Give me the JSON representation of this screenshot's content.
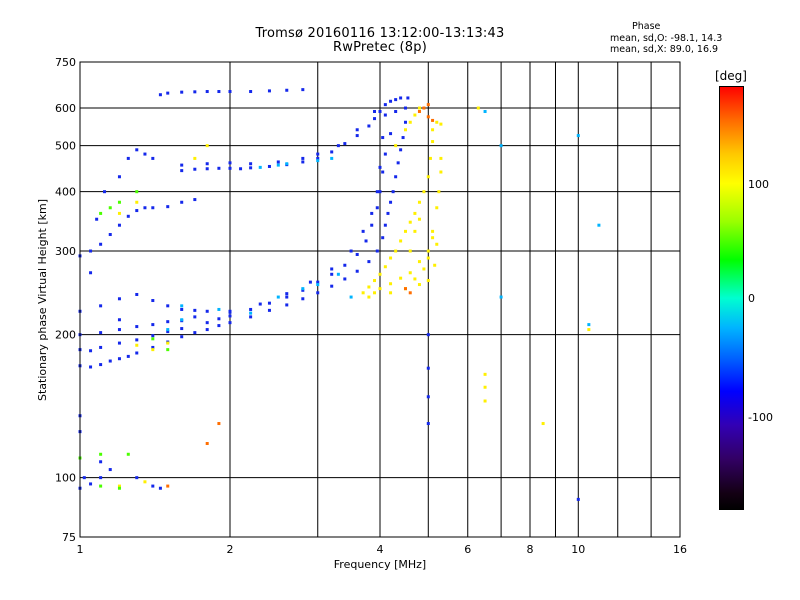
{
  "header": {
    "title_line1": "Tromsø 20160116 13:12:00-13:13:43",
    "title_line2": "RwPretec (8p)",
    "phase_label": "Phase",
    "phase_o": "mean, sd,O: -98.1, 14.3",
    "phase_x": "mean, sd,X: 89.0, 16.9"
  },
  "colorbar": {
    "unit": "[deg]",
    "ticks": [
      "100",
      "0",
      "-100"
    ],
    "range": [
      -180,
      180
    ]
  },
  "chart_data": {
    "type": "scatter",
    "title": "Tromsø 20160116 13:12:00-13:13:43",
    "subtitle": "RwPretec (8p)",
    "xlabel": "Frequency [MHz]",
    "ylabel": "Stationary phase Virtual Height [km]",
    "xscale": "log",
    "yscale": "log",
    "xlim": [
      1,
      16
    ],
    "ylim": [
      75,
      750
    ],
    "xticks": [
      "1",
      "2",
      "4",
      "6",
      "8",
      "10",
      "16"
    ],
    "xtick_values": [
      1,
      2,
      4,
      6,
      8,
      10,
      16
    ],
    "xgrid": [
      1,
      2,
      3,
      4,
      5,
      6,
      7,
      8,
      9,
      10,
      12,
      14,
      16
    ],
    "yticks": [
      "75",
      "100",
      "200",
      "300",
      "400",
      "500",
      "600",
      "750"
    ],
    "ytick_values": [
      75,
      100,
      200,
      300,
      400,
      500,
      600,
      750
    ],
    "grid": true,
    "colorbar_label": "[deg]",
    "colors": {
      "o_mode": "#1a2ee6",
      "x_mode": "#ffee00",
      "axis": "#000000"
    },
    "series": [
      {
        "color_deg": -98,
        "points": [
          [
            1.0,
            172
          ],
          [
            1.05,
            171
          ],
          [
            1.1,
            173
          ],
          [
            1.15,
            176
          ],
          [
            1.2,
            178
          ],
          [
            1.25,
            180
          ],
          [
            1.3,
            183
          ],
          [
            1.4,
            188
          ],
          [
            1.5,
            193
          ],
          [
            1.6,
            198
          ],
          [
            1.7,
            202
          ],
          [
            1.8,
            205
          ],
          [
            1.9,
            209
          ],
          [
            2.0,
            212
          ],
          [
            2.2,
            218
          ],
          [
            2.4,
            225
          ],
          [
            2.6,
            231
          ],
          [
            2.8,
            238
          ],
          [
            3.0,
            245
          ],
          [
            3.2,
            253
          ],
          [
            3.4,
            262
          ],
          [
            3.6,
            272
          ],
          [
            3.8,
            285
          ],
          [
            3.95,
            300
          ],
          [
            4.05,
            320
          ],
          [
            4.1,
            340
          ],
          [
            4.15,
            360
          ],
          [
            4.2,
            380
          ],
          [
            4.25,
            400
          ],
          [
            4.3,
            430
          ],
          [
            4.35,
            460
          ],
          [
            4.4,
            490
          ],
          [
            4.45,
            520
          ],
          [
            4.5,
            560
          ],
          [
            4.5,
            600
          ],
          [
            4.55,
            630
          ],
          [
            1.0,
            186
          ],
          [
            1.05,
            185
          ],
          [
            1.1,
            188
          ],
          [
            1.2,
            192
          ],
          [
            1.3,
            195
          ],
          [
            1.4,
            199
          ],
          [
            1.5,
            203
          ],
          [
            1.6,
            206
          ],
          [
            1.8,
            212
          ],
          [
            2.0,
            219
          ],
          [
            2.2,
            226
          ],
          [
            2.4,
            233
          ],
          [
            2.6,
            240
          ],
          [
            2.8,
            248
          ],
          [
            3.0,
            258
          ],
          [
            3.2,
            268
          ],
          [
            3.4,
            280
          ],
          [
            3.6,
            295
          ],
          [
            3.75,
            315
          ],
          [
            3.85,
            340
          ],
          [
            3.95,
            370
          ],
          [
            4.0,
            400
          ],
          [
            4.05,
            440
          ],
          [
            4.1,
            480
          ],
          [
            4.2,
            530
          ],
          [
            4.3,
            590
          ],
          [
            4.4,
            630
          ],
          [
            1.0,
            200
          ],
          [
            1.1,
            202
          ],
          [
            1.2,
            205
          ],
          [
            1.3,
            208
          ],
          [
            1.5,
            213
          ],
          [
            1.7,
            218
          ],
          [
            2.0,
            224
          ],
          [
            2.3,
            232
          ],
          [
            2.6,
            244
          ],
          [
            2.9,
            258
          ],
          [
            3.2,
            275
          ],
          [
            3.5,
            300
          ],
          [
            3.7,
            330
          ],
          [
            3.85,
            360
          ],
          [
            3.95,
            400
          ],
          [
            4.0,
            450
          ],
          [
            4.05,
            520
          ],
          [
            4.1,
            580
          ],
          [
            1.0,
            224
          ],
          [
            1.1,
            230
          ],
          [
            1.2,
            238
          ],
          [
            1.3,
            243
          ],
          [
            1.4,
            236
          ],
          [
            1.5,
            230
          ],
          [
            1.6,
            226
          ],
          [
            1.7,
            225
          ],
          [
            1.8,
            224
          ],
          [
            2.0,
            223
          ],
          [
            1.2,
            215
          ],
          [
            1.4,
            210
          ],
          [
            1.6,
            214
          ],
          [
            1.9,
            216
          ],
          [
            1.6,
            443
          ],
          [
            1.7,
            446
          ],
          [
            1.8,
            447
          ],
          [
            1.9,
            448
          ],
          [
            2.0,
            448
          ],
          [
            2.1,
            447
          ],
          [
            2.2,
            449
          ],
          [
            2.4,
            452
          ],
          [
            2.6,
            456
          ],
          [
            2.8,
            462
          ],
          [
            3.0,
            470
          ],
          [
            3.2,
            485
          ],
          [
            3.4,
            505
          ],
          [
            3.6,
            525
          ],
          [
            3.8,
            550
          ],
          [
            3.9,
            570
          ],
          [
            4.0,
            590
          ],
          [
            4.1,
            610
          ],
          [
            4.2,
            620
          ],
          [
            4.3,
            625
          ],
          [
            1.6,
            455
          ],
          [
            1.8,
            458
          ],
          [
            2.0,
            460
          ],
          [
            2.2,
            458
          ],
          [
            2.5,
            462
          ],
          [
            2.8,
            470
          ],
          [
            3.0,
            480
          ],
          [
            3.3,
            500
          ],
          [
            3.6,
            540
          ],
          [
            3.9,
            590
          ],
          [
            1.45,
            640
          ],
          [
            1.5,
            645
          ],
          [
            1.6,
            648
          ],
          [
            1.7,
            649
          ],
          [
            1.8,
            650
          ],
          [
            1.9,
            650
          ],
          [
            2.0,
            650
          ],
          [
            2.2,
            650
          ],
          [
            2.4,
            652
          ],
          [
            2.6,
            654
          ],
          [
            2.8,
            656
          ],
          [
            1.0,
            293
          ],
          [
            1.05,
            300
          ],
          [
            1.1,
            310
          ],
          [
            1.15,
            325
          ],
          [
            1.2,
            340
          ],
          [
            1.25,
            355
          ],
          [
            1.3,
            365
          ],
          [
            1.35,
            370
          ],
          [
            1.4,
            370
          ],
          [
            1.5,
            372
          ],
          [
            1.6,
            380
          ],
          [
            1.7,
            385
          ],
          [
            1.05,
            270
          ],
          [
            1.08,
            350
          ],
          [
            1.12,
            400
          ],
          [
            1.2,
            430
          ],
          [
            1.25,
            470
          ],
          [
            1.3,
            490
          ],
          [
            1.35,
            480
          ],
          [
            1.4,
            470
          ],
          [
            1.0,
            95
          ],
          [
            1.02,
            100
          ],
          [
            1.05,
            97
          ],
          [
            1.1,
            100
          ],
          [
            1.15,
            104
          ],
          [
            1.1,
            108
          ],
          [
            1.3,
            100
          ],
          [
            1.4,
            96
          ],
          [
            1.45,
            95
          ],
          [
            1.0,
            125
          ],
          [
            1.0,
            135
          ],
          [
            5.0,
            200
          ],
          [
            5.0,
            170
          ],
          [
            5.0,
            148
          ],
          [
            5.0,
            130
          ],
          [
            10.0,
            90
          ]
        ]
      },
      {
        "color_deg": 89,
        "points": [
          [
            3.7,
            245
          ],
          [
            3.8,
            252
          ],
          [
            3.9,
            260
          ],
          [
            4.0,
            268
          ],
          [
            4.1,
            278
          ],
          [
            4.2,
            290
          ],
          [
            4.3,
            300
          ],
          [
            4.4,
            315
          ],
          [
            4.5,
            330
          ],
          [
            4.6,
            345
          ],
          [
            4.7,
            360
          ],
          [
            4.8,
            380
          ],
          [
            4.9,
            400
          ],
          [
            5.0,
            430
          ],
          [
            5.05,
            470
          ],
          [
            5.1,
            510
          ],
          [
            5.1,
            540
          ],
          [
            3.8,
            240
          ],
          [
            3.9,
            245
          ],
          [
            4.0,
            250
          ],
          [
            4.2,
            256
          ],
          [
            4.4,
            263
          ],
          [
            4.6,
            270
          ],
          [
            4.8,
            285
          ],
          [
            5.0,
            300
          ],
          [
            5.1,
            330
          ],
          [
            5.2,
            370
          ],
          [
            5.25,
            400
          ],
          [
            5.3,
            440
          ],
          [
            5.3,
            470
          ],
          [
            4.2,
            245
          ],
          [
            4.5,
            250
          ],
          [
            4.8,
            255
          ],
          [
            5.0,
            260
          ],
          [
            5.15,
            280
          ],
          [
            5.2,
            310
          ],
          [
            4.3,
            500
          ],
          [
            4.5,
            540
          ],
          [
            4.6,
            560
          ],
          [
            4.7,
            580
          ],
          [
            4.8,
            600
          ],
          [
            5.2,
            560
          ],
          [
            5.3,
            555
          ],
          [
            4.5,
            250
          ],
          [
            4.7,
            262
          ],
          [
            4.9,
            275
          ],
          [
            5.0,
            290
          ],
          [
            5.1,
            320
          ],
          [
            4.6,
            300
          ],
          [
            4.7,
            330
          ],
          [
            4.8,
            350
          ],
          [
            1.3,
            190
          ],
          [
            1.4,
            186
          ],
          [
            1.5,
            192
          ],
          [
            1.35,
            98
          ],
          [
            1.2,
            96
          ],
          [
            1.8,
            500
          ],
          [
            1.7,
            470
          ],
          [
            1.3,
            380
          ],
          [
            1.2,
            360
          ],
          [
            6.5,
            165
          ],
          [
            6.5,
            155
          ],
          [
            6.5,
            145
          ],
          [
            8.5,
            130
          ],
          [
            10.5,
            205
          ],
          [
            6.3,
            600
          ]
        ]
      },
      {
        "color_deg": 30,
        "points": [
          [
            1.15,
            370
          ],
          [
            1.2,
            380
          ],
          [
            1.1,
            360
          ],
          [
            1.3,
            400
          ],
          [
            1.0,
            110
          ],
          [
            1.1,
            112
          ],
          [
            1.25,
            112
          ],
          [
            1.1,
            96
          ],
          [
            1.2,
            95
          ],
          [
            1.5,
            186
          ],
          [
            1.4,
            196
          ]
        ]
      },
      {
        "color_deg": -40,
        "points": [
          [
            2.3,
            450
          ],
          [
            2.5,
            455
          ],
          [
            2.6,
            458
          ],
          [
            3.0,
            465
          ],
          [
            3.2,
            470
          ],
          [
            1.6,
            230
          ],
          [
            1.9,
            226
          ],
          [
            2.2,
            222
          ],
          [
            2.5,
            240
          ],
          [
            2.8,
            250
          ],
          [
            3.0,
            255
          ],
          [
            3.3,
            268
          ],
          [
            1.5,
            205
          ],
          [
            1.6,
            215
          ],
          [
            10.0,
            525
          ],
          [
            11.0,
            340
          ],
          [
            7.0,
            240
          ],
          [
            7.0,
            500
          ],
          [
            6.5,
            590
          ],
          [
            10.5,
            210
          ],
          [
            3.5,
            240
          ]
        ]
      },
      {
        "color_deg": 150,
        "points": [
          [
            4.8,
            590
          ],
          [
            4.9,
            600
          ],
          [
            5.0,
            610
          ],
          [
            1.9,
            130
          ],
          [
            1.8,
            118
          ],
          [
            1.5,
            96
          ],
          [
            4.5,
            250
          ],
          [
            4.6,
            245
          ],
          [
            5.0,
            575
          ],
          [
            5.1,
            565
          ]
        ]
      }
    ]
  }
}
